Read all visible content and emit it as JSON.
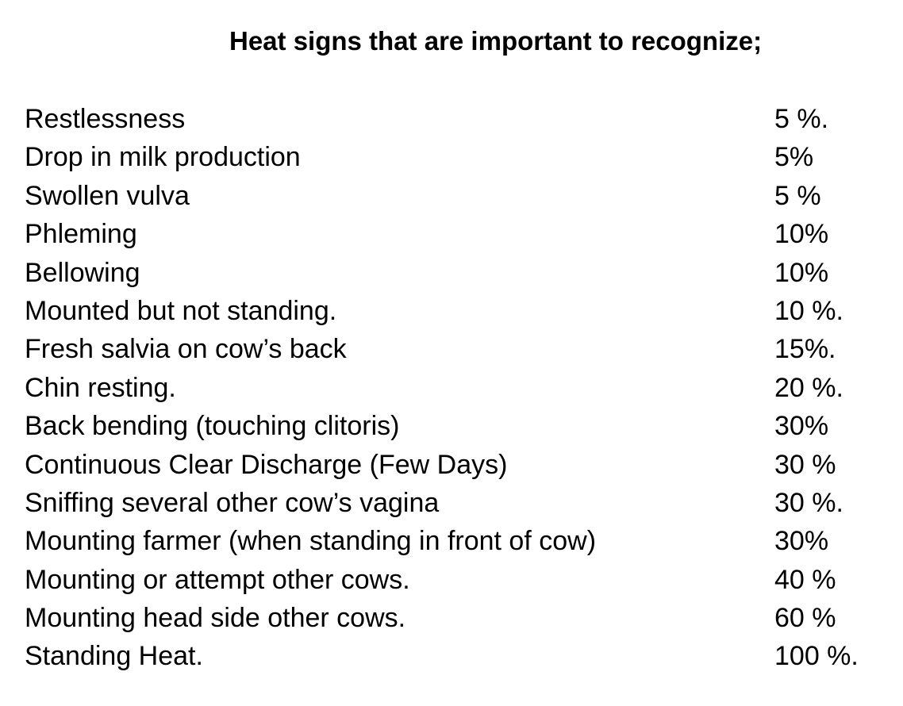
{
  "title": "Heat signs that are important to recognize;",
  "signs": [
    {
      "label": "Restlessness",
      "value": "5 %."
    },
    {
      "label": "Drop in milk production",
      "value": "5%"
    },
    {
      "label": "Swollen vulva",
      "value": "5 %"
    },
    {
      "label": "Phleming",
      "value": "10%"
    },
    {
      "label": "Bellowing",
      "value": "10%"
    },
    {
      "label": "Mounted but not standing.",
      "value": "10 %."
    },
    {
      "label": "Fresh salvia on cow’s back",
      "value": "15%."
    },
    {
      "label": "Chin resting.",
      "value": "20 %."
    },
    {
      "label": "Back bending (touching clitoris)",
      "value": "30%"
    },
    {
      "label": "Continuous Clear Discharge (Few Days)",
      "value": "30 %"
    },
    {
      "label": "Sniffing several other cow’s vagina",
      "value": "30 %."
    },
    {
      "label": "Mounting farmer (when standing in front of cow)",
      "value": "30%"
    },
    {
      "label": "Mounting or attempt other cows.",
      "value": "40 %"
    },
    {
      "label": "Mounting head side other cows.",
      "value": "60 %"
    },
    {
      "label": "Standing Heat.",
      "value": "100 %."
    }
  ]
}
